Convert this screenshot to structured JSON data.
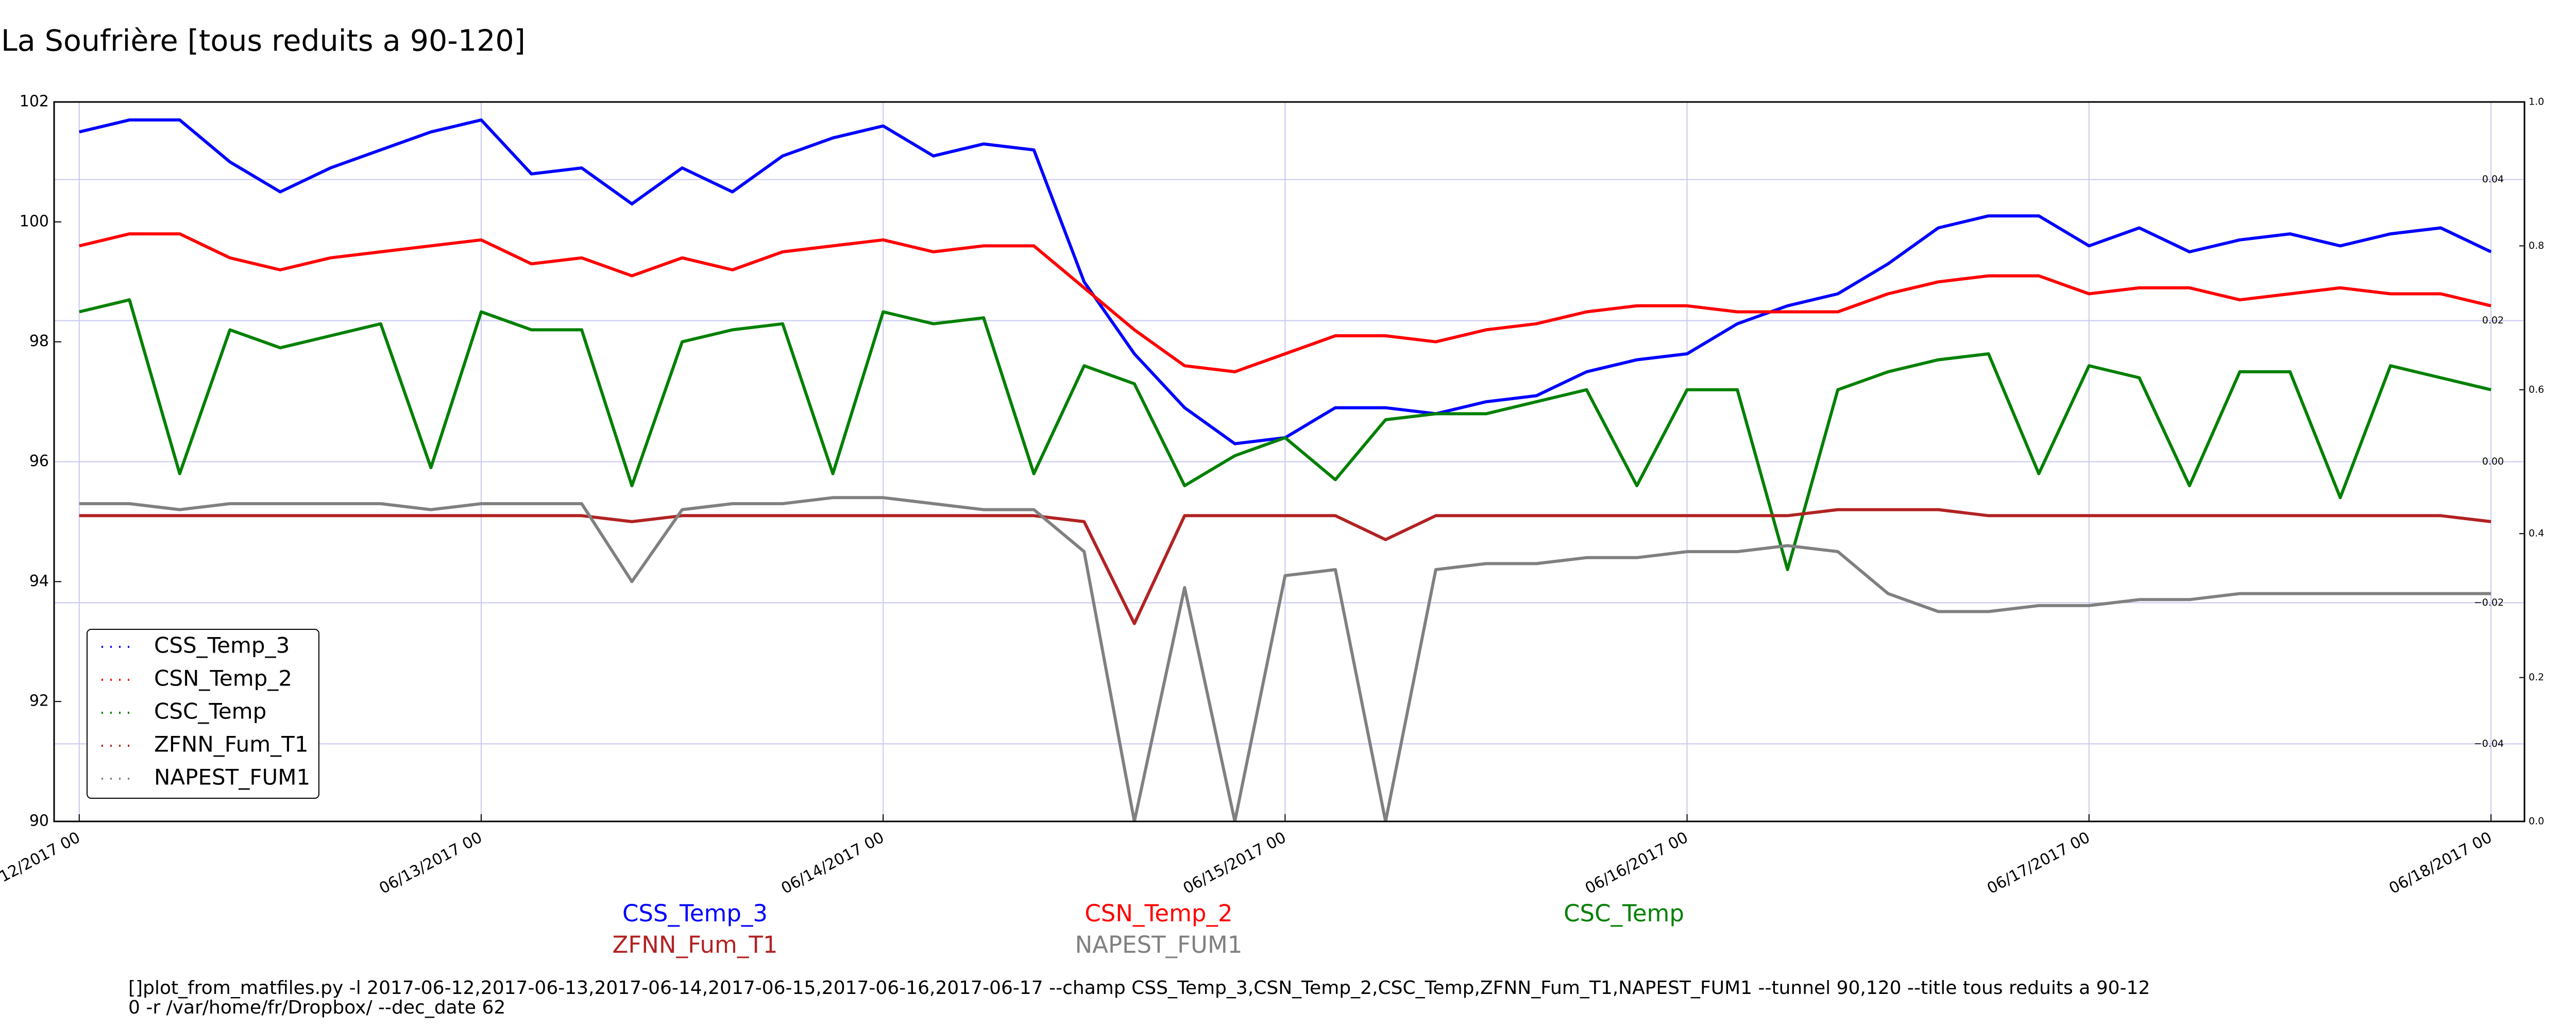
{
  "chart_data": {
    "type": "line",
    "title": "La Soufrière [tous reduits a 90-120]",
    "x": [
      "2017-06-12 00:00",
      "2017-06-12 03:00",
      "2017-06-12 06:00",
      "2017-06-12 09:00",
      "2017-06-12 12:00",
      "2017-06-12 15:00",
      "2017-06-12 18:00",
      "2017-06-12 21:00",
      "2017-06-13 00:00",
      "2017-06-13 03:00",
      "2017-06-13 06:00",
      "2017-06-13 09:00",
      "2017-06-13 12:00",
      "2017-06-13 15:00",
      "2017-06-13 18:00",
      "2017-06-13 21:00",
      "2017-06-14 00:00",
      "2017-06-14 03:00",
      "2017-06-14 06:00",
      "2017-06-14 09:00",
      "2017-06-14 12:00",
      "2017-06-14 15:00",
      "2017-06-14 18:00",
      "2017-06-14 21:00",
      "2017-06-15 00:00",
      "2017-06-15 03:00",
      "2017-06-15 06:00",
      "2017-06-15 09:00",
      "2017-06-15 12:00",
      "2017-06-15 15:00",
      "2017-06-15 18:00",
      "2017-06-15 21:00",
      "2017-06-16 00:00",
      "2017-06-16 03:00",
      "2017-06-16 06:00",
      "2017-06-16 09:00",
      "2017-06-16 12:00",
      "2017-06-16 15:00",
      "2017-06-16 18:00",
      "2017-06-16 21:00",
      "2017-06-17 00:00",
      "2017-06-17 03:00",
      "2017-06-17 06:00",
      "2017-06-17 09:00",
      "2017-06-17 12:00",
      "2017-06-17 15:00",
      "2017-06-17 18:00",
      "2017-06-17 21:00",
      "2017-06-18 00:00"
    ],
    "series": [
      {
        "name": "CSS_Temp_3",
        "color": "#0000ff",
        "values": [
          101.5,
          101.7,
          101.7,
          101.0,
          100.5,
          100.9,
          101.2,
          101.5,
          101.7,
          100.8,
          100.9,
          100.3,
          100.9,
          100.5,
          101.1,
          101.4,
          101.6,
          101.1,
          101.3,
          101.2,
          99.0,
          97.8,
          96.9,
          96.3,
          96.4,
          96.9,
          96.9,
          96.8,
          97.0,
          97.1,
          97.5,
          97.7,
          97.8,
          98.3,
          98.6,
          98.8,
          99.3,
          99.9,
          100.1,
          100.1,
          99.6,
          99.9,
          99.5,
          99.7,
          99.8,
          99.6,
          99.8,
          99.9,
          99.5
        ]
      },
      {
        "name": "CSN_Temp_2",
        "color": "#ff0000",
        "values": [
          99.6,
          99.8,
          99.8,
          99.4,
          99.2,
          99.4,
          99.5,
          99.6,
          99.7,
          99.3,
          99.4,
          99.1,
          99.4,
          99.2,
          99.5,
          99.6,
          99.7,
          99.5,
          99.6,
          99.6,
          98.9,
          98.2,
          97.6,
          97.5,
          97.8,
          98.1,
          98.1,
          98.0,
          98.2,
          98.3,
          98.5,
          98.6,
          98.6,
          98.5,
          98.5,
          98.5,
          98.8,
          99.0,
          99.1,
          99.1,
          98.8,
          98.9,
          98.9,
          98.7,
          98.8,
          98.9,
          98.8,
          98.8,
          98.6
        ]
      },
      {
        "name": "CSC_Temp",
        "color": "#008000",
        "values": [
          98.5,
          98.7,
          95.8,
          98.2,
          97.9,
          98.1,
          98.3,
          95.9,
          98.5,
          98.2,
          98.2,
          95.6,
          98.0,
          98.2,
          98.3,
          95.8,
          98.5,
          98.3,
          98.4,
          95.8,
          97.6,
          97.3,
          95.6,
          96.1,
          96.4,
          95.7,
          96.7,
          96.8,
          96.8,
          97.0,
          97.2,
          95.6,
          97.2,
          97.2,
          94.2,
          97.2,
          97.5,
          97.7,
          97.8,
          95.8,
          97.6,
          97.4,
          95.6,
          97.5,
          97.5,
          95.4,
          97.6,
          97.4,
          97.2
        ]
      },
      {
        "name": "ZFNN_Fum_T1",
        "color": "#b22222",
        "values": [
          95.1,
          95.1,
          95.1,
          95.1,
          95.1,
          95.1,
          95.1,
          95.1,
          95.1,
          95.1,
          95.1,
          95.0,
          95.1,
          95.1,
          95.1,
          95.1,
          95.1,
          95.1,
          95.1,
          95.1,
          95.0,
          93.3,
          95.1,
          95.1,
          95.1,
          95.1,
          94.7,
          95.1,
          95.1,
          95.1,
          95.1,
          95.1,
          95.1,
          95.1,
          95.1,
          95.2,
          95.2,
          95.2,
          95.1,
          95.1,
          95.1,
          95.1,
          95.1,
          95.1,
          95.1,
          95.1,
          95.1,
          95.1,
          95.0
        ]
      },
      {
        "name": "NAPEST_FUM1",
        "color": "#808080",
        "values": [
          95.3,
          95.3,
          95.2,
          95.3,
          95.3,
          95.3,
          95.3,
          95.2,
          95.3,
          95.3,
          95.3,
          94.0,
          95.2,
          95.3,
          95.3,
          95.4,
          95.4,
          95.3,
          95.2,
          95.2,
          94.5,
          90.0,
          93.9,
          90.0,
          94.1,
          94.2,
          90.0,
          94.2,
          94.3,
          94.3,
          94.4,
          94.4,
          94.5,
          94.5,
          94.6,
          94.5,
          93.8,
          93.5,
          93.5,
          93.6,
          93.6,
          93.7,
          93.7,
          93.8,
          93.8,
          93.8,
          93.8,
          93.8,
          93.8
        ]
      }
    ],
    "xlim": [
      "2017-06-11 22:30",
      "2017-06-18 02:00"
    ],
    "xticks": [
      {
        "value": "2017-06-12 00:00",
        "label": "06/12/2017 00"
      },
      {
        "value": "2017-06-13 00:00",
        "label": "06/13/2017 00"
      },
      {
        "value": "2017-06-14 00:00",
        "label": "06/14/2017 00"
      },
      {
        "value": "2017-06-15 00:00",
        "label": "06/15/2017 00"
      },
      {
        "value": "2017-06-16 00:00",
        "label": "06/16/2017 00"
      },
      {
        "value": "2017-06-17 00:00",
        "label": "06/17/2017 00"
      },
      {
        "value": "2017-06-18 00:00",
        "label": "06/18/2017 00"
      }
    ],
    "ylim": [
      90,
      102
    ],
    "yticks": [
      90,
      92,
      94,
      96,
      98,
      100,
      102
    ],
    "y2lim": [
      0,
      1
    ],
    "y2ticks": [
      {
        "value": 0,
        "label": "0.0"
      },
      0.2,
      0.4,
      0.6,
      0.8,
      {
        "value": 1,
        "label": "1.0"
      }
    ],
    "y3lim": [
      -0.051,
      0.051
    ],
    "y3ticks": [
      {
        "value": -0.04,
        "label": "−0.04"
      },
      {
        "value": -0.02,
        "label": "−0.02"
      },
      {
        "value": 0,
        "label": "0.00"
      },
      0.02,
      0.04
    ],
    "grid": true,
    "legend": "lower left",
    "command": [
      "[]plot_from_matfiles.py -l 2017-06-12,2017-06-13,2017-06-14,2017-06-15,2017-06-16,2017-06-17 --champ CSS_Temp_3,CSN_Temp_2,CSC_Temp,ZFNN_Fum_T1,NAPEST_FUM1 --tunnel 90,120 --title tous reduits a 90-12",
      "0 -r /var/home/fr/Dropbox/ --dec_date 62"
    ]
  }
}
